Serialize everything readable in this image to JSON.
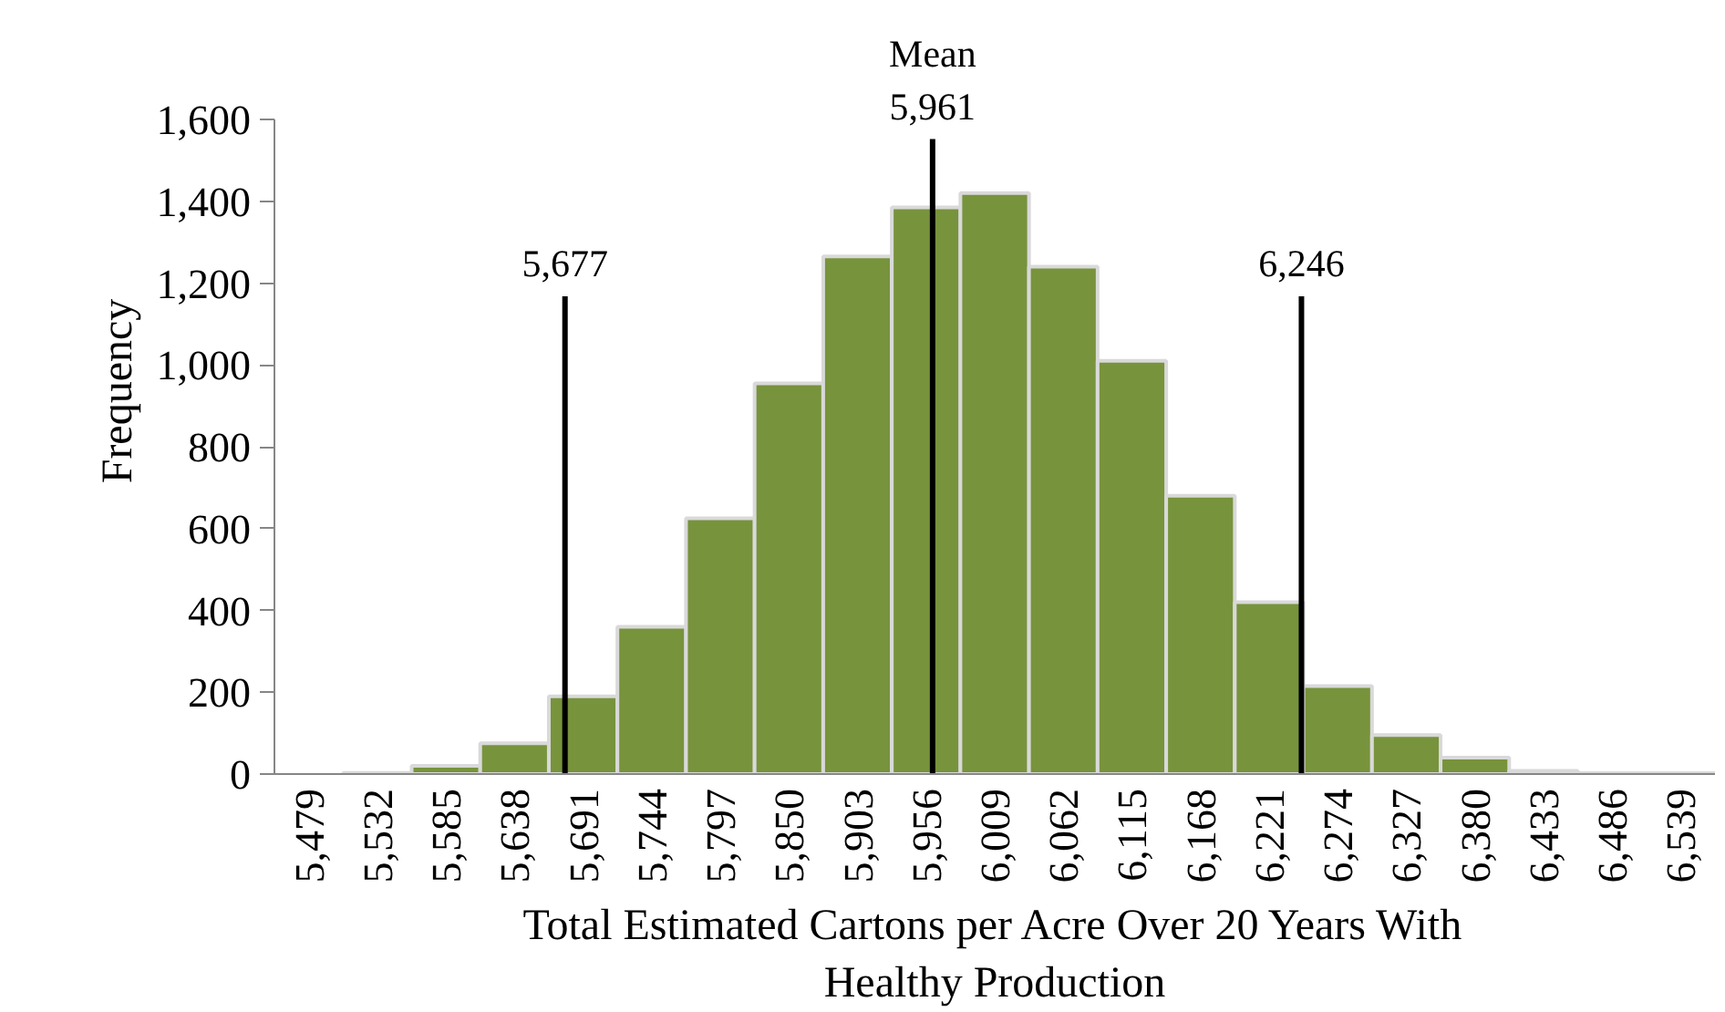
{
  "chart_data": {
    "type": "histogram",
    "xlabel": "Total Estimated Cartons per Acre Over 20 Years With\nHealthy Production",
    "ylabel": "Frequency",
    "bins": [
      5452.5,
      5505.5,
      5558.5,
      5611.5,
      5664.5,
      5717.5,
      5770.5,
      5823.5,
      5876.5,
      5929.5,
      5982.5,
      6035.5,
      6088.5,
      6141.5,
      6194.5,
      6247.5,
      6300.5,
      6353.5,
      6406.5,
      6459.5,
      6512.5,
      6565.5
    ],
    "values": [
      0,
      3,
      20,
      75,
      190,
      360,
      625,
      955,
      1265,
      1385,
      1420,
      1240,
      1010,
      680,
      420,
      215,
      95,
      40,
      8,
      2,
      2
    ],
    "color": "#77933c",
    "xlim": [
      5452.5,
      6565.5
    ],
    "xticks": [
      {
        "value": 5479,
        "label": "5,479"
      },
      {
        "value": 5532,
        "label": "5,532"
      },
      {
        "value": 5585,
        "label": "5,585"
      },
      {
        "value": 5638,
        "label": "5,638"
      },
      {
        "value": 5691,
        "label": "5,691"
      },
      {
        "value": 5744,
        "label": "5,744"
      },
      {
        "value": 5797,
        "label": "5,797"
      },
      {
        "value": 5850,
        "label": "5,850"
      },
      {
        "value": 5903,
        "label": "5,903"
      },
      {
        "value": 5956,
        "label": "5,956"
      },
      {
        "value": 6009,
        "label": "6,009"
      },
      {
        "value": 6062,
        "label": "6,062"
      },
      {
        "value": 6115,
        "label": "6,115"
      },
      {
        "value": 6168,
        "label": "6,168"
      },
      {
        "value": 6221,
        "label": "6,221"
      },
      {
        "value": 6274,
        "label": "6,274"
      },
      {
        "value": 6327,
        "label": "6,327"
      },
      {
        "value": 6380,
        "label": "6,380"
      },
      {
        "value": 6433,
        "label": "6,433"
      },
      {
        "value": 6486,
        "label": "6,486"
      },
      {
        "value": 6539,
        "label": "6,539"
      }
    ],
    "ylim": [
      0,
      1600
    ],
    "yticks": [
      0,
      {
        "value": 200,
        "label": "200"
      },
      {
        "value": 400,
        "label": "400"
      },
      {
        "value": 600,
        "label": "600"
      },
      {
        "value": 800,
        "label": "800"
      },
      {
        "value": 1000,
        "label": "1,000"
      },
      {
        "value": 1200,
        "label": "1,200"
      },
      {
        "value": 1400,
        "label": "1,400"
      },
      {
        "value": 1600,
        "label": "1,600"
      }
    ],
    "ref_lines": [
      {
        "axis": "x",
        "value": 5677,
        "label": "5,677",
        "color": "#000000"
      },
      {
        "axis": "x",
        "value": 5961,
        "label": "Mean\n5,961",
        "color": "#000000"
      },
      {
        "axis": "x",
        "value": 6246,
        "label": "6,246",
        "color": "#000000"
      }
    ],
    "grid": false
  }
}
